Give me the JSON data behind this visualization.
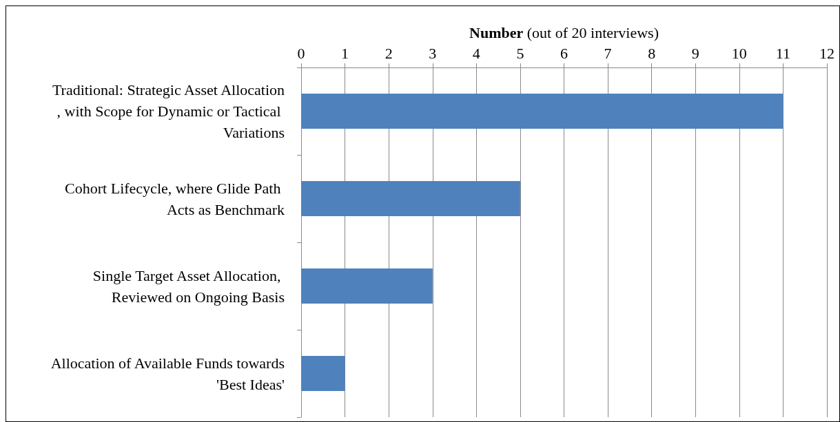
{
  "chart_data": {
    "type": "bar",
    "orientation": "horizontal",
    "xlabel": "Number (out of 20 interviews)",
    "categories": [
      "Traditional: Strategic Asset Allocation, with Scope for Dynamic or Tactical Variations",
      "Cohort Lifecycle, where Glide Path Acts as Benchmark",
      "Single Target Asset Allocation, Reviewed on Ongoing Basis",
      "Allocation of Available Funds towards 'Best Ideas'"
    ],
    "values": [
      11,
      5,
      3,
      1
    ],
    "color": "#4f81bd",
    "xlim": [
      0,
      12
    ],
    "xticks": [
      0,
      1,
      2,
      3,
      4,
      5,
      6,
      7,
      8,
      9,
      10,
      11,
      12
    ],
    "grid": "x"
  }
}
